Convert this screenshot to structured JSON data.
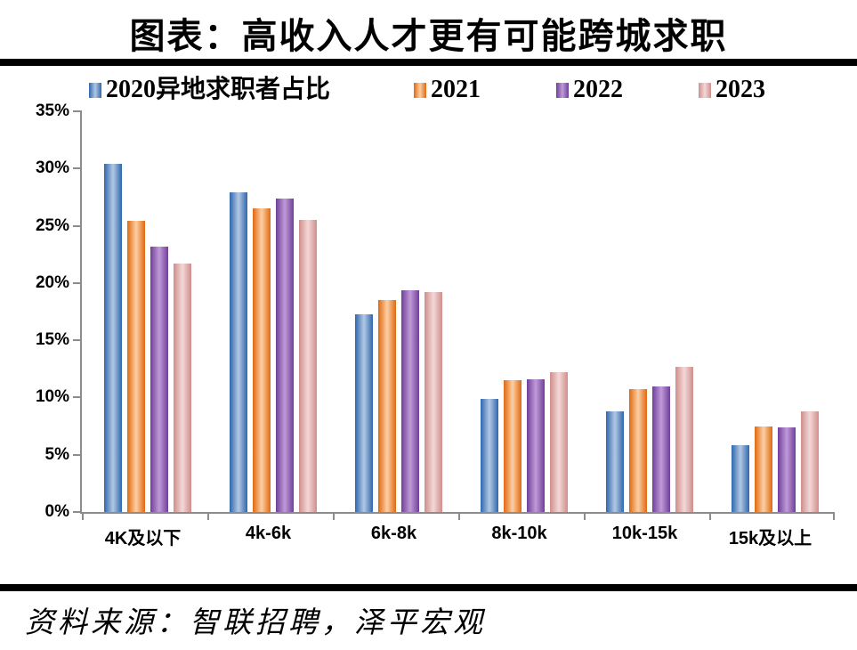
{
  "title": "图表：高收入人才更有可能跨城求职",
  "source": "资料来源：智联招聘，泽平宏观",
  "chart_data": {
    "type": "bar",
    "categories": [
      "4K及以下",
      "4k-6k",
      "6k-8k",
      "8k-10k",
      "10k-15k",
      "15k及以上"
    ],
    "series": [
      {
        "name": "2020异地求职者占比",
        "color_edge": "#2e67ae",
        "color_mid": "#b3c8e2",
        "values": [
          30.4,
          27.9,
          17.3,
          9.9,
          8.8,
          5.8
        ]
      },
      {
        "name": "2021",
        "color_edge": "#e06910",
        "color_mid": "#fccfa5",
        "values": [
          25.4,
          26.5,
          18.5,
          11.5,
          10.7,
          7.5
        ]
      },
      {
        "name": "2022",
        "color_edge": "#6f3f99",
        "color_mid": "#c09ad8",
        "values": [
          23.2,
          27.4,
          19.4,
          11.6,
          11.0,
          7.4
        ]
      },
      {
        "name": "2023",
        "color_edge": "#cf8e8c",
        "color_mid": "#f3d8d7",
        "values": [
          21.7,
          25.5,
          19.2,
          12.2,
          12.7,
          8.8
        ]
      }
    ],
    "ylim": [
      0,
      35
    ],
    "ytick_step": 5,
    "ytick_labels": [
      "0%",
      "5%",
      "10%",
      "15%",
      "20%",
      "25%",
      "30%",
      "35%"
    ],
    "legend_position": "top",
    "grid": false,
    "axis_color": "#8c8c8c"
  }
}
